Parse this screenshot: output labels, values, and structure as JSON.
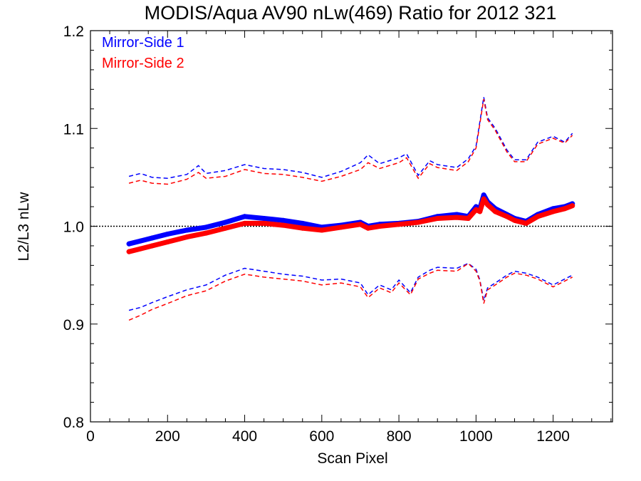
{
  "chart_data": {
    "type": "line",
    "title": "MODIS/Aqua AV90 nLw(469) Ratio for 2012 321",
    "xlabel": "Scan Pixel",
    "ylabel": "L2/L3 nLw",
    "xlim": [
      0,
      1354
    ],
    "ylim": [
      0.8,
      1.2
    ],
    "x_ticks": [
      0,
      200,
      400,
      600,
      800,
      1000,
      1200
    ],
    "x_tick_labels": [
      "0",
      "200",
      "400",
      "600",
      "800",
      "1000",
      "1200"
    ],
    "y_ticks": [
      0.8,
      0.9,
      1.0,
      1.1,
      1.2
    ],
    "y_tick_labels": [
      "0.8",
      "0.9",
      "1.0",
      "1.1",
      "1.2"
    ],
    "reference_line": {
      "y": 1.0,
      "style": "dotted",
      "color": "#000000"
    },
    "legend_position": "top-left",
    "colors": {
      "side1": "#0000ff",
      "side2": "#ff0000"
    },
    "series": [
      {
        "name": "Mirror-Side 1",
        "color": "#0000ff",
        "mean": {
          "x": [
            100,
            130,
            160,
            200,
            250,
            300,
            350,
            400,
            450,
            500,
            550,
            600,
            650,
            700,
            720,
            750,
            800,
            850,
            900,
            950,
            980,
            1000,
            1010,
            1020,
            1030,
            1050,
            1080,
            1100,
            1130,
            1160,
            1200,
            1230,
            1250
          ],
          "y": [
            0.982,
            0.985,
            0.988,
            0.992,
            0.996,
            0.999,
            1.004,
            1.01,
            1.008,
            1.006,
            1.003,
            0.999,
            1.001,
            1.004,
            1.0,
            1.002,
            1.003,
            1.005,
            1.01,
            1.012,
            1.01,
            1.02,
            1.018,
            1.032,
            1.025,
            1.018,
            1.012,
            1.008,
            1.005,
            1.012,
            1.018,
            1.02,
            1.023
          ]
        },
        "upper": {
          "x": [
            100,
            130,
            160,
            200,
            250,
            280,
            300,
            350,
            400,
            450,
            500,
            550,
            600,
            650,
            700,
            720,
            750,
            800,
            820,
            850,
            880,
            900,
            950,
            980,
            1000,
            1020,
            1030,
            1050,
            1080,
            1100,
            1130,
            1160,
            1200,
            1230,
            1250
          ],
          "y": [
            1.051,
            1.054,
            1.05,
            1.049,
            1.053,
            1.062,
            1.054,
            1.057,
            1.063,
            1.059,
            1.058,
            1.055,
            1.05,
            1.056,
            1.065,
            1.073,
            1.064,
            1.07,
            1.074,
            1.052,
            1.067,
            1.063,
            1.06,
            1.069,
            1.082,
            1.132,
            1.111,
            1.1,
            1.078,
            1.068,
            1.068,
            1.086,
            1.092,
            1.086,
            1.095
          ]
        },
        "lower": {
          "x": [
            100,
            130,
            160,
            200,
            250,
            300,
            350,
            400,
            450,
            500,
            550,
            600,
            650,
            700,
            720,
            750,
            780,
            800,
            830,
            850,
            880,
            900,
            950,
            980,
            1000,
            1010,
            1020,
            1030,
            1050,
            1080,
            1100,
            1130,
            1160,
            1200,
            1230,
            1250
          ],
          "y": [
            0.914,
            0.917,
            0.922,
            0.928,
            0.935,
            0.94,
            0.95,
            0.957,
            0.954,
            0.951,
            0.949,
            0.945,
            0.946,
            0.942,
            0.93,
            0.94,
            0.935,
            0.945,
            0.932,
            0.948,
            0.955,
            0.958,
            0.957,
            0.962,
            0.956,
            0.945,
            0.924,
            0.937,
            0.942,
            0.95,
            0.954,
            0.952,
            0.948,
            0.94,
            0.946,
            0.95
          ]
        }
      },
      {
        "name": "Mirror-Side 2",
        "color": "#ff0000",
        "mean": {
          "x": [
            100,
            130,
            160,
            200,
            250,
            300,
            350,
            400,
            450,
            500,
            550,
            600,
            650,
            700,
            720,
            750,
            800,
            850,
            900,
            950,
            980,
            1000,
            1010,
            1020,
            1030,
            1050,
            1080,
            1100,
            1130,
            1160,
            1200,
            1230,
            1250
          ],
          "y": [
            0.974,
            0.977,
            0.98,
            0.984,
            0.989,
            0.993,
            0.998,
            1.003,
            1.003,
            1.001,
            0.998,
            0.996,
            0.999,
            1.002,
            0.998,
            1.0,
            1.002,
            1.004,
            1.008,
            1.009,
            1.008,
            1.017,
            1.015,
            1.028,
            1.022,
            1.015,
            1.01,
            1.006,
            1.003,
            1.01,
            1.015,
            1.018,
            1.021
          ]
        },
        "upper": {
          "x": [
            100,
            130,
            160,
            200,
            250,
            280,
            300,
            350,
            400,
            450,
            500,
            550,
            600,
            650,
            700,
            720,
            750,
            800,
            820,
            850,
            880,
            900,
            950,
            980,
            1000,
            1020,
            1030,
            1050,
            1080,
            1100,
            1130,
            1160,
            1200,
            1230,
            1250
          ],
          "y": [
            1.044,
            1.047,
            1.044,
            1.043,
            1.048,
            1.055,
            1.049,
            1.051,
            1.058,
            1.054,
            1.053,
            1.05,
            1.046,
            1.051,
            1.058,
            1.065,
            1.059,
            1.065,
            1.07,
            1.049,
            1.064,
            1.06,
            1.057,
            1.066,
            1.08,
            1.13,
            1.109,
            1.098,
            1.076,
            1.066,
            1.066,
            1.084,
            1.09,
            1.085,
            1.093
          ]
        },
        "lower": {
          "x": [
            100,
            130,
            160,
            200,
            250,
            300,
            350,
            400,
            450,
            500,
            550,
            600,
            650,
            700,
            720,
            750,
            780,
            800,
            830,
            850,
            880,
            900,
            950,
            980,
            1000,
            1010,
            1020,
            1030,
            1050,
            1080,
            1100,
            1130,
            1160,
            1200,
            1230,
            1250
          ],
          "y": [
            0.904,
            0.909,
            0.915,
            0.921,
            0.929,
            0.934,
            0.944,
            0.951,
            0.948,
            0.946,
            0.944,
            0.94,
            0.942,
            0.938,
            0.927,
            0.937,
            0.932,
            0.942,
            0.93,
            0.946,
            0.952,
            0.955,
            0.954,
            0.962,
            0.954,
            0.944,
            0.921,
            0.935,
            0.94,
            0.948,
            0.952,
            0.95,
            0.946,
            0.938,
            0.944,
            0.948
          ]
        }
      }
    ]
  }
}
